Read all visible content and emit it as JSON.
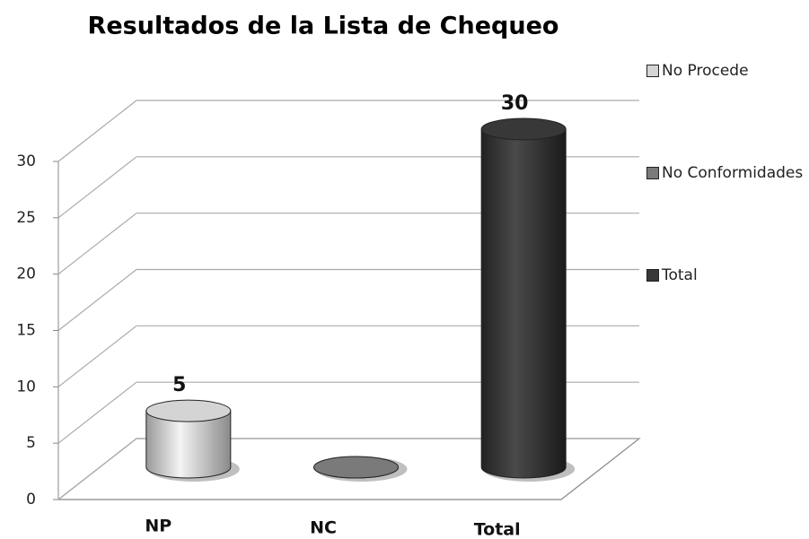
{
  "chart_data": {
    "type": "bar3d",
    "title": "Resultados de la Lista de Chequeo",
    "categories": [
      "NP",
      "NC",
      "Total"
    ],
    "series": [
      {
        "name": "No Procede",
        "color": "#d4d4d4",
        "values": [
          5,
          null,
          null
        ],
        "value_labels": [
          "5",
          null,
          null
        ]
      },
      {
        "name": "No Conformidades",
        "color": "#7a7a7a",
        "values": [
          null,
          0,
          null
        ],
        "value_labels": [
          null,
          null,
          null
        ]
      },
      {
        "name": "Total",
        "color": "#383838",
        "values": [
          null,
          null,
          30
        ],
        "value_labels": [
          null,
          null,
          "30"
        ]
      }
    ],
    "ylim": [
      0,
      30
    ],
    "yticks": [
      0,
      5,
      10,
      15,
      20,
      25,
      30
    ],
    "grid": true,
    "legend": "right"
  }
}
